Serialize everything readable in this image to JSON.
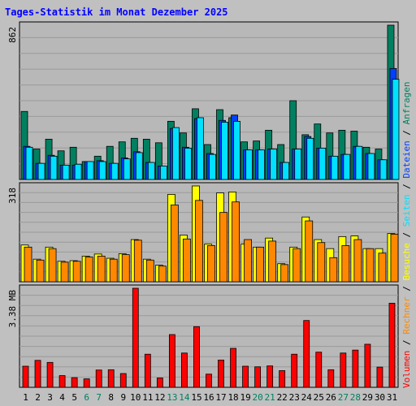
{
  "title": "Tages-Statistik im Monat Dezember 2025",
  "chart_data": [
    {
      "type": "bar",
      "ylabel": "862",
      "ylim": [
        0,
        862
      ],
      "categories": [
        "1",
        "2",
        "3",
        "4",
        "5",
        "6",
        "7",
        "8",
        "9",
        "10",
        "11",
        "12",
        "13",
        "14",
        "15",
        "16",
        "17",
        "18",
        "19",
        "20",
        "21",
        "22",
        "23",
        "24",
        "25",
        "26",
        "27",
        "28",
        "29",
        "30",
        "31"
      ],
      "series": [
        {
          "name": "Anfragen",
          "color": "#008060",
          "values": [
            380,
            170,
            225,
            160,
            180,
            100,
            130,
            185,
            210,
            230,
            225,
            205,
            325,
            260,
            395,
            195,
            390,
            345,
            210,
            215,
            275,
            195,
            440,
            250,
            310,
            260,
            275,
            270,
            180,
            170,
            862
          ]
        },
        {
          "name": "Dateien",
          "color": "#0040ff",
          "values": [
            185,
            90,
            135,
            80,
            80,
            100,
            105,
            90,
            120,
            155,
            95,
            75,
            285,
            180,
            340,
            145,
            330,
            360,
            165,
            165,
            170,
            95,
            170,
            240,
            175,
            130,
            140,
            185,
            145,
            110,
            620
          ]
        },
        {
          "name": "Seiten",
          "color": "#00e0ff",
          "values": [
            180,
            90,
            130,
            80,
            85,
            100,
            100,
            90,
            115,
            150,
            95,
            75,
            290,
            175,
            345,
            140,
            320,
            325,
            165,
            165,
            170,
            95,
            170,
            230,
            175,
            130,
            140,
            185,
            145,
            110,
            560
          ]
        }
      ]
    },
    {
      "type": "bar",
      "ylabel": "318",
      "ylim": [
        0,
        318
      ],
      "categories": [
        "1",
        "2",
        "3",
        "4",
        "5",
        "6",
        "7",
        "8",
        "9",
        "10",
        "11",
        "12",
        "13",
        "14",
        "15",
        "16",
        "17",
        "18",
        "19",
        "20",
        "21",
        "22",
        "23",
        "24",
        "25",
        "26",
        "27",
        "28",
        "29",
        "30",
        "31"
      ],
      "series": [
        {
          "name": "Besuche",
          "color": "#ffff00",
          "values": [
            122,
            75,
            115,
            68,
            70,
            85,
            92,
            78,
            93,
            140,
            75,
            55,
            290,
            155,
            318,
            125,
            295,
            298,
            125,
            115,
            145,
            60,
            115,
            215,
            140,
            110,
            150,
            152,
            110,
            110,
            160
          ]
        },
        {
          "name": "Rechner",
          "color": "#ff8800",
          "values": [
            115,
            72,
            110,
            65,
            68,
            82,
            85,
            75,
            90,
            138,
            72,
            52,
            255,
            142,
            270,
            120,
            230,
            265,
            140,
            115,
            135,
            57,
            110,
            202,
            130,
            80,
            120,
            140,
            110,
            95,
            158
          ]
        }
      ]
    },
    {
      "type": "bar",
      "ylabel": "3.38 MB",
      "ylim": [
        0,
        3.38
      ],
      "categories": [
        "1",
        "2",
        "3",
        "4",
        "5",
        "6",
        "7",
        "8",
        "9",
        "10",
        "11",
        "12",
        "13",
        "14",
        "15",
        "16",
        "17",
        "18",
        "19",
        "20",
        "21",
        "22",
        "23",
        "24",
        "25",
        "26",
        "27",
        "28",
        "29",
        "30",
        "31"
      ],
      "series": [
        {
          "name": "Volumen",
          "color": "#ff0000",
          "values": [
            0.72,
            0.92,
            0.85,
            0.4,
            0.33,
            0.29,
            0.59,
            0.6,
            0.47,
            3.38,
            1.13,
            0.32,
            1.8,
            1.17,
            2.07,
            0.45,
            0.93,
            1.33,
            0.72,
            0.7,
            0.73,
            0.57,
            1.13,
            2.28,
            1.2,
            0.6,
            1.17,
            1.27,
            1.47,
            0.69,
            2.87
          ]
        }
      ]
    }
  ],
  "x_weekend_days": [
    6,
    7,
    13,
    14,
    20,
    21,
    27,
    28
  ],
  "side_legend": [
    "Volumen",
    "Rechner",
    "Besuche",
    "Seiten",
    "Dateien",
    "Anfragen"
  ]
}
